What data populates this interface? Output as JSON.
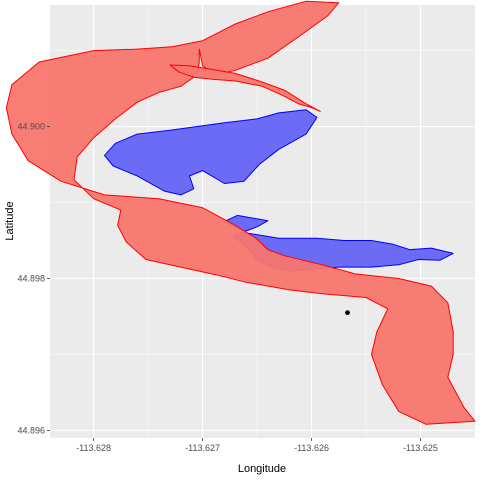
{
  "chart_data": {
    "type": "map",
    "title": "",
    "xlabel": "Longitude",
    "ylabel": "Latitude",
    "xlim": [
      -113.6284,
      -113.6245
    ],
    "ylim": [
      44.8959,
      44.9016
    ],
    "x_ticks": [
      {
        "value": -113.628,
        "label": "-113.628"
      },
      {
        "value": -113.627,
        "label": "-113.627"
      },
      {
        "value": -113.626,
        "label": "-113.626"
      },
      {
        "value": -113.625,
        "label": "-113.625"
      }
    ],
    "y_ticks": [
      {
        "value": 44.896,
        "label": "44.896"
      },
      {
        "value": 44.898,
        "label": "44.898"
      },
      {
        "value": 44.9,
        "label": "44.900"
      }
    ],
    "grid": true,
    "legend": "none",
    "colors": {
      "panel": "#ebebeb",
      "grid": "#ffffff",
      "red_fill": "#f8766d",
      "red_stroke": "#ff0000",
      "blue_fill": "#6b6bf5",
      "blue_stroke": "#0000ff",
      "point": "#000000"
    },
    "layers": [
      {
        "name": "channel",
        "color": "red",
        "polygons": [
          [
            [
              -113.62703,
              44.90102
            ],
            [
              -113.627,
              44.9008
            ],
            [
              -113.62688,
              44.90068
            ],
            [
              -113.6267,
              44.90074
            ],
            [
              -113.6264,
              44.9009
            ],
            [
              -113.6261,
              44.9012
            ],
            [
              -113.62585,
              44.90146
            ],
            [
              -113.62575,
              44.90163
            ],
            [
              -113.62605,
              44.90165
            ],
            [
              -113.6264,
              44.90151
            ],
            [
              -113.6267,
              44.90135
            ],
            [
              -113.627,
              44.90113
            ],
            [
              -113.62728,
              44.90105
            ],
            [
              -113.6276,
              44.90102
            ],
            [
              -113.628,
              44.901
            ],
            [
              -113.6285,
              44.90085
            ],
            [
              -113.62875,
              44.90055
            ],
            [
              -113.6288,
              44.90025
            ],
            [
              -113.62875,
              44.8999
            ],
            [
              -113.6286,
              44.89955
            ],
            [
              -113.6283,
              44.89928
            ],
            [
              -113.6279,
              44.8991
            ],
            [
              -113.6274,
              44.89905
            ],
            [
              -113.627,
              44.89893
            ],
            [
              -113.6267,
              44.8987
            ],
            [
              -113.6265,
              44.89852
            ],
            [
              -113.6264,
              44.89838
            ],
            [
              -113.62625,
              44.8983
            ],
            [
              -113.6259,
              44.89818
            ],
            [
              -113.6256,
              44.89806
            ],
            [
              -113.6252,
              44.898
            ],
            [
              -113.6249,
              44.8979
            ],
            [
              -113.62475,
              44.89768
            ],
            [
              -113.6247,
              44.8973
            ],
            [
              -113.6247,
              44.897
            ],
            [
              -113.62475,
              44.8967
            ],
            [
              -113.6246,
              44.8963
            ],
            [
              -113.6245,
              44.89612
            ],
            [
              -113.62495,
              44.89608
            ],
            [
              -113.6252,
              44.89625
            ],
            [
              -113.62535,
              44.8966
            ],
            [
              -113.62545,
              44.897
            ],
            [
              -113.6254,
              44.8973
            ],
            [
              -113.6253,
              44.8976
            ],
            [
              -113.6255,
              44.89775
            ],
            [
              -113.6259,
              44.8978
            ],
            [
              -113.6262,
              44.89785
            ],
            [
              -113.6266,
              44.89795
            ],
            [
              -113.62688,
              44.89805
            ],
            [
              -113.6272,
              44.89815
            ],
            [
              -113.62752,
              44.89825
            ],
            [
              -113.6277,
              44.89848
            ],
            [
              -113.62778,
              44.8987
            ],
            [
              -113.62775,
              44.8989
            ],
            [
              -113.628,
              44.89905
            ],
            [
              -113.62818,
              44.8993
            ],
            [
              -113.62815,
              44.8996
            ],
            [
              -113.628,
              44.89985
            ],
            [
              -113.6278,
              44.9001
            ],
            [
              -113.6276,
              44.90032
            ],
            [
              -113.6274,
              44.90045
            ],
            [
              -113.6272,
              44.90053
            ],
            [
              -113.62705,
              44.90068
            ],
            [
              -113.62703,
              44.90085
            ],
            [
              -113.62703,
              44.90102
            ]
          ],
          [
            [
              -113.6273,
              44.90081
            ],
            [
              -113.62722,
              44.90072
            ],
            [
              -113.62708,
              44.90065
            ],
            [
              -113.6269,
              44.90062
            ],
            [
              -113.6267,
              44.9006
            ],
            [
              -113.62645,
              44.90053
            ],
            [
              -113.62625,
              44.9004
            ],
            [
              -113.62612,
              44.9003
            ],
            [
              -113.626,
              44.90025
            ],
            [
              -113.62592,
              44.9002
            ],
            [
              -113.62605,
              44.9003
            ],
            [
              -113.62625,
              44.90048
            ],
            [
              -113.62648,
              44.9006
            ],
            [
              -113.6267,
              44.9007
            ],
            [
              -113.62695,
              44.90076
            ],
            [
              -113.62712,
              44.9008
            ],
            [
              -113.6273,
              44.90081
            ]
          ]
        ]
      },
      {
        "name": "pond",
        "color": "blue",
        "polygons": [
          [
            [
              -113.6278,
              44.89978
            ],
            [
              -113.6276,
              44.8999
            ],
            [
              -113.6273,
              44.89995
            ],
            [
              -113.62705,
              44.9
            ],
            [
              -113.6268,
              44.90005
            ],
            [
              -113.6265,
              44.9001
            ],
            [
              -113.6263,
              44.90018
            ],
            [
              -113.62605,
              44.90022
            ],
            [
              -113.62595,
              44.90012
            ],
            [
              -113.62605,
              44.8999
            ],
            [
              -113.6263,
              44.8997
            ],
            [
              -113.62648,
              44.8995
            ],
            [
              -113.62662,
              44.89928
            ],
            [
              -113.6268,
              44.89925
            ],
            [
              -113.627,
              44.89942
            ],
            [
              -113.62712,
              44.89935
            ],
            [
              -113.62708,
              44.89918
            ],
            [
              -113.6272,
              44.8991
            ],
            [
              -113.62735,
              44.89915
            ],
            [
              -113.6276,
              44.89935
            ],
            [
              -113.62782,
              44.89948
            ],
            [
              -113.6279,
              44.89962
            ],
            [
              -113.6278,
              44.89978
            ]
          ],
          [
            [
              -113.6264,
              44.89876
            ],
            [
              -113.62668,
              44.89883
            ],
            [
              -113.6268,
              44.89875
            ],
            [
              -113.6266,
              44.8986
            ],
            [
              -113.6263,
              44.89853
            ],
            [
              -113.62595,
              44.89853
            ],
            [
              -113.6257,
              44.8985
            ],
            [
              -113.62545,
              44.8985
            ],
            [
              -113.62525,
              44.89845
            ],
            [
              -113.6251,
              44.89838
            ],
            [
              -113.6249,
              44.8984
            ],
            [
              -113.6247,
              44.89833
            ],
            [
              -113.62482,
              44.89824
            ],
            [
              -113.62502,
              44.89825
            ],
            [
              -113.6252,
              44.89818
            ],
            [
              -113.62545,
              44.89815
            ],
            [
              -113.62575,
              44.89815
            ],
            [
              -113.626,
              44.89812
            ],
            [
              -113.6262,
              44.8981
            ],
            [
              -113.62637,
              44.89815
            ],
            [
              -113.6265,
              44.89825
            ],
            [
              -113.6266,
              44.89842
            ],
            [
              -113.62672,
              44.89856
            ],
            [
              -113.6265,
              44.89868
            ],
            [
              -113.6264,
              44.89876
            ]
          ]
        ]
      }
    ],
    "points": [
      {
        "x": -113.62567,
        "y": 44.89755
      }
    ]
  }
}
